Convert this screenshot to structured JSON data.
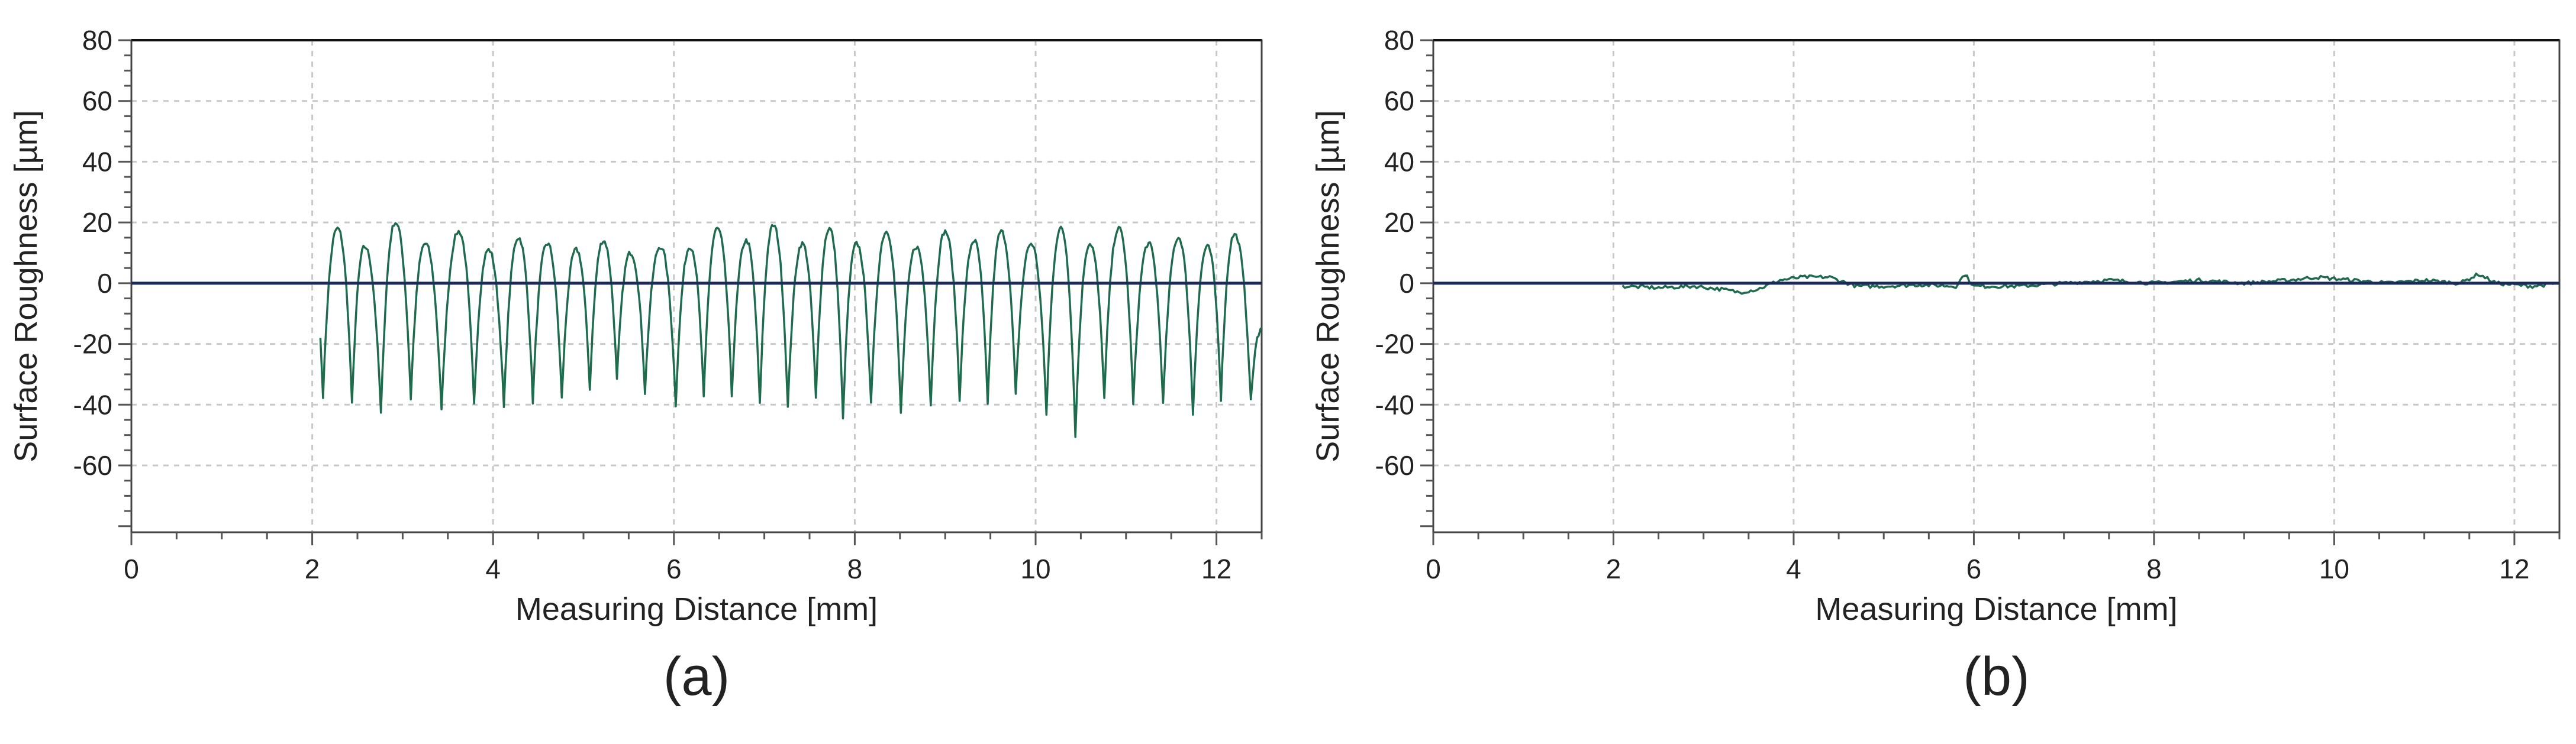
{
  "colors": {
    "trace": "#1f6b4e",
    "zero_line": "#1b2a57",
    "grid": "#c8c8c8"
  },
  "chart_data": [
    {
      "type": "line",
      "panel_label": "(a)",
      "title": "",
      "xlabel": "Measuring Distance [mm]",
      "ylabel": "Surface Roughness [µm]",
      "xlim": [
        0,
        12.5
      ],
      "ylim": [
        -82,
        80
      ],
      "x_ticks": [
        0,
        2,
        4,
        6,
        8,
        10,
        12
      ],
      "y_ticks": [
        80,
        60,
        40,
        20,
        0,
        -20,
        -40,
        -60
      ],
      "grid": true,
      "reference_line_y": 0,
      "profile": {
        "x_start": 2.1,
        "x_end": 12.5,
        "peaks": [
          {
            "x": 2.28,
            "y": 18
          },
          {
            "x": 2.58,
            "y": 12
          },
          {
            "x": 2.92,
            "y": 20
          },
          {
            "x": 3.25,
            "y": 13
          },
          {
            "x": 3.62,
            "y": 17
          },
          {
            "x": 3.95,
            "y": 11
          },
          {
            "x": 4.28,
            "y": 15
          },
          {
            "x": 4.6,
            "y": 13
          },
          {
            "x": 4.92,
            "y": 11
          },
          {
            "x": 5.22,
            "y": 14
          },
          {
            "x": 5.52,
            "y": 10
          },
          {
            "x": 5.85,
            "y": 12
          },
          {
            "x": 6.18,
            "y": 12
          },
          {
            "x": 6.48,
            "y": 18
          },
          {
            "x": 6.8,
            "y": 14
          },
          {
            "x": 7.1,
            "y": 19
          },
          {
            "x": 7.42,
            "y": 13
          },
          {
            "x": 7.72,
            "y": 18
          },
          {
            "x": 8.02,
            "y": 13
          },
          {
            "x": 8.35,
            "y": 17
          },
          {
            "x": 8.68,
            "y": 12
          },
          {
            "x": 9.0,
            "y": 17
          },
          {
            "x": 9.32,
            "y": 14
          },
          {
            "x": 9.62,
            "y": 17
          },
          {
            "x": 9.95,
            "y": 13
          },
          {
            "x": 10.28,
            "y": 18
          },
          {
            "x": 10.6,
            "y": 13
          },
          {
            "x": 10.92,
            "y": 18
          },
          {
            "x": 11.25,
            "y": 13
          },
          {
            "x": 11.58,
            "y": 15
          },
          {
            "x": 11.9,
            "y": 12
          },
          {
            "x": 12.2,
            "y": 16
          }
        ],
        "valleys": [
          {
            "x": 2.12,
            "y": -37
          },
          {
            "x": 2.44,
            "y": -40
          },
          {
            "x": 2.76,
            "y": -43
          },
          {
            "x": 3.09,
            "y": -38
          },
          {
            "x": 3.43,
            "y": -42
          },
          {
            "x": 3.79,
            "y": -40
          },
          {
            "x": 4.12,
            "y": -41
          },
          {
            "x": 4.44,
            "y": -39
          },
          {
            "x": 4.76,
            "y": -38
          },
          {
            "x": 5.07,
            "y": -35
          },
          {
            "x": 5.37,
            "y": -32
          },
          {
            "x": 5.68,
            "y": -36
          },
          {
            "x": 6.02,
            "y": -40
          },
          {
            "x": 6.33,
            "y": -38
          },
          {
            "x": 6.64,
            "y": -37
          },
          {
            "x": 6.95,
            "y": -40
          },
          {
            "x": 7.26,
            "y": -41
          },
          {
            "x": 7.57,
            "y": -38
          },
          {
            "x": 7.87,
            "y": -45
          },
          {
            "x": 8.18,
            "y": -40
          },
          {
            "x": 8.51,
            "y": -43
          },
          {
            "x": 8.84,
            "y": -40
          },
          {
            "x": 9.16,
            "y": -38
          },
          {
            "x": 9.47,
            "y": -40
          },
          {
            "x": 9.78,
            "y": -37
          },
          {
            "x": 10.12,
            "y": -43
          },
          {
            "x": 10.44,
            "y": -50
          },
          {
            "x": 10.76,
            "y": -38
          },
          {
            "x": 11.08,
            "y": -40
          },
          {
            "x": 11.41,
            "y": -40
          },
          {
            "x": 11.74,
            "y": -43
          },
          {
            "x": 12.05,
            "y": -38
          },
          {
            "x": 12.38,
            "y": -39
          }
        ],
        "end_value": -15
      }
    },
    {
      "type": "line",
      "panel_label": "(b)",
      "title": "",
      "xlabel": "Measuring Distance [mm]",
      "ylabel": "Surface Roughness [µm]",
      "xlim": [
        0,
        12.5
      ],
      "ylim": [
        -82,
        80
      ],
      "x_ticks": [
        0,
        2,
        4,
        6,
        8,
        10,
        12
      ],
      "y_ticks": [
        80,
        60,
        40,
        20,
        0,
        -20,
        -40,
        -60
      ],
      "grid": true,
      "reference_line_y": 0,
      "profile": {
        "x_start": 2.1,
        "x_end": 12.5,
        "points": [
          {
            "x": 2.1,
            "y": -1
          },
          {
            "x": 2.5,
            "y": -1.5
          },
          {
            "x": 2.9,
            "y": -1
          },
          {
            "x": 3.2,
            "y": -2
          },
          {
            "x": 3.4,
            "y": -3
          },
          {
            "x": 3.6,
            "y": -2
          },
          {
            "x": 3.85,
            "y": 1
          },
          {
            "x": 4.1,
            "y": 2
          },
          {
            "x": 4.4,
            "y": 2
          },
          {
            "x": 4.7,
            "y": -1
          },
          {
            "x": 5.0,
            "y": -1
          },
          {
            "x": 5.4,
            "y": -0.5
          },
          {
            "x": 5.8,
            "y": -1
          },
          {
            "x": 5.9,
            "y": 3
          },
          {
            "x": 6.0,
            "y": -1
          },
          {
            "x": 6.5,
            "y": -1
          },
          {
            "x": 7.0,
            "y": 0
          },
          {
            "x": 7.5,
            "y": 1
          },
          {
            "x": 8.0,
            "y": 0
          },
          {
            "x": 8.5,
            "y": 1
          },
          {
            "x": 9.0,
            "y": 0
          },
          {
            "x": 9.5,
            "y": 1
          },
          {
            "x": 9.8,
            "y": 2
          },
          {
            "x": 10.2,
            "y": 1
          },
          {
            "x": 10.6,
            "y": 0
          },
          {
            "x": 11.0,
            "y": 1
          },
          {
            "x": 11.4,
            "y": 0
          },
          {
            "x": 11.6,
            "y": 3
          },
          {
            "x": 11.8,
            "y": 0
          },
          {
            "x": 12.2,
            "y": -1
          },
          {
            "x": 12.5,
            "y": 0
          }
        ]
      }
    }
  ]
}
